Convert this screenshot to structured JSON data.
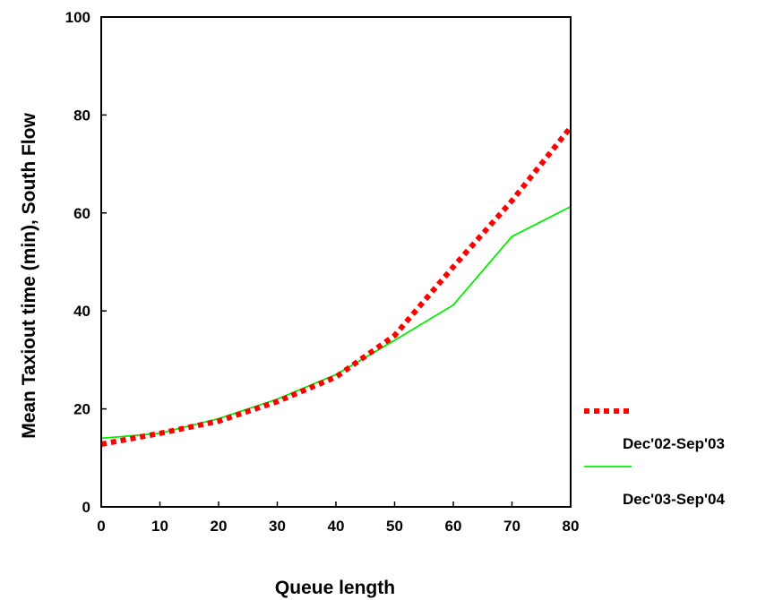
{
  "chart_data": {
    "type": "line",
    "title": "",
    "xlabel": "Queue length",
    "ylabel": "Mean Taxiout time (min), South Flow",
    "xlim": [
      0,
      80
    ],
    "ylim": [
      0,
      100
    ],
    "xticks": [
      "0",
      "10",
      "20",
      "30",
      "40",
      "50",
      "60",
      "70",
      "80"
    ],
    "yticks": [
      "0",
      "20",
      "40",
      "60",
      "80",
      "100"
    ],
    "grid": false,
    "legend_position": "right",
    "series": [
      {
        "name": "Dec'02-Sep'03",
        "color": "#ff0000",
        "style": "dotted",
        "x": [
          0,
          10,
          20,
          30,
          40,
          50,
          60,
          70,
          80
        ],
        "y": [
          12.8,
          15,
          17.5,
          21.5,
          26.5,
          35,
          49,
          62.5,
          77.5
        ]
      },
      {
        "name": "Dec'03-Sep'04",
        "color": "#00ee00",
        "style": "solid",
        "x": [
          0,
          10,
          20,
          30,
          40,
          50,
          60,
          70,
          80
        ],
        "y": [
          14,
          15,
          18,
          22,
          27,
          34,
          41.2,
          55.2,
          61.3
        ]
      }
    ]
  }
}
